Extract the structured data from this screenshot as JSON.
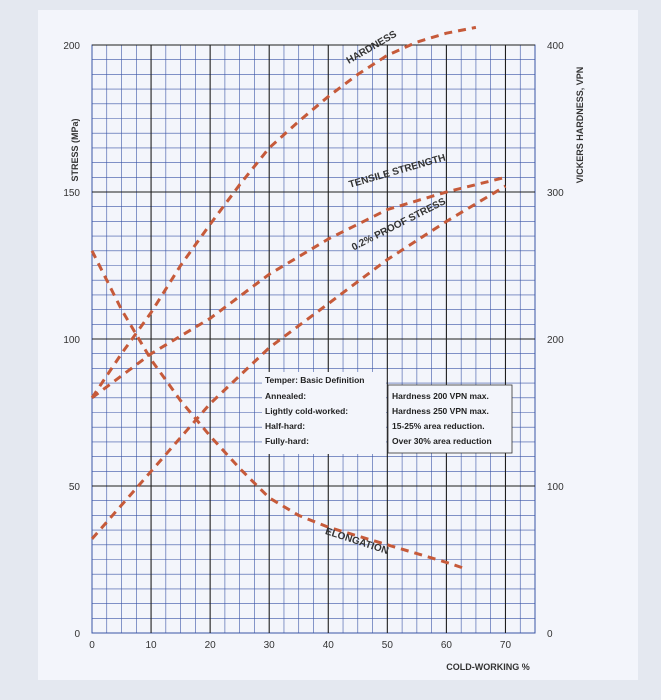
{
  "chart_data": {
    "type": "line",
    "title": "",
    "xlabel": "COLD-WORKING %",
    "ylabel": "STRESS (MPa)",
    "ylabel_right": "VICKERS HARDNESS, VPN",
    "xlim": [
      0,
      75
    ],
    "ylim": [
      0,
      200
    ],
    "ylim_right": [
      0,
      400
    ],
    "x_ticks": [
      "0",
      "10",
      "20",
      "30",
      "40",
      "50",
      "60",
      "70"
    ],
    "y_ticks": [
      "0",
      "50",
      "100",
      "150",
      "200"
    ],
    "y_ticks_right": [
      "0",
      "100",
      "200",
      "300",
      "400"
    ],
    "grid": true,
    "series": [
      {
        "name": "HARDNESS",
        "axis": "right",
        "x": [
          0,
          5,
          10,
          15,
          20,
          25,
          30,
          35,
          40,
          45,
          50,
          55,
          60,
          65
        ],
        "y": [
          160,
          190,
          218,
          250,
          278,
          305,
          330,
          348,
          365,
          380,
          393,
          402,
          408,
          412
        ]
      },
      {
        "name": "TENSILE STRENGTH",
        "axis": "left",
        "x": [
          0,
          10,
          20,
          30,
          40,
          50,
          60,
          70
        ],
        "y": [
          80,
          95,
          107,
          122,
          134,
          144,
          150,
          155
        ]
      },
      {
        "name": "0.2% PROOF STRESS",
        "axis": "left",
        "x": [
          0,
          10,
          20,
          30,
          40,
          50,
          60,
          70
        ],
        "y": [
          32,
          55,
          78,
          97,
          112,
          127,
          140,
          152
        ]
      },
      {
        "name": "ELONGATION",
        "axis": "left",
        "x": [
          0,
          5,
          10,
          15,
          20,
          25,
          30,
          35,
          40,
          45,
          50,
          55,
          60,
          63
        ],
        "y": [
          130,
          110,
          93,
          79,
          67,
          56,
          46,
          40,
          36,
          33,
          30,
          27,
          24,
          22
        ]
      }
    ],
    "legend_table": {
      "header": "Temper: Basic Definition",
      "rows": [
        {
          "temper": "Annealed:",
          "definition": ""
        },
        {
          "temper": "Lightly cold-worked:",
          "definition": "Hardness 200 VPN max."
        },
        {
          "temper": "Half-hard:",
          "definition": "Hardness 250 VPN max."
        },
        {
          "temper": "Fully-hard:",
          "definition": "15-25% area reduction."
        },
        {
          "temper": "",
          "definition": "Over 30% area reduction"
        }
      ]
    },
    "colors": {
      "series": "#c65a3a",
      "grid_major": "#1e1e1e",
      "grid_minor": "#3a55a6",
      "background": "#f3f5fb"
    }
  }
}
